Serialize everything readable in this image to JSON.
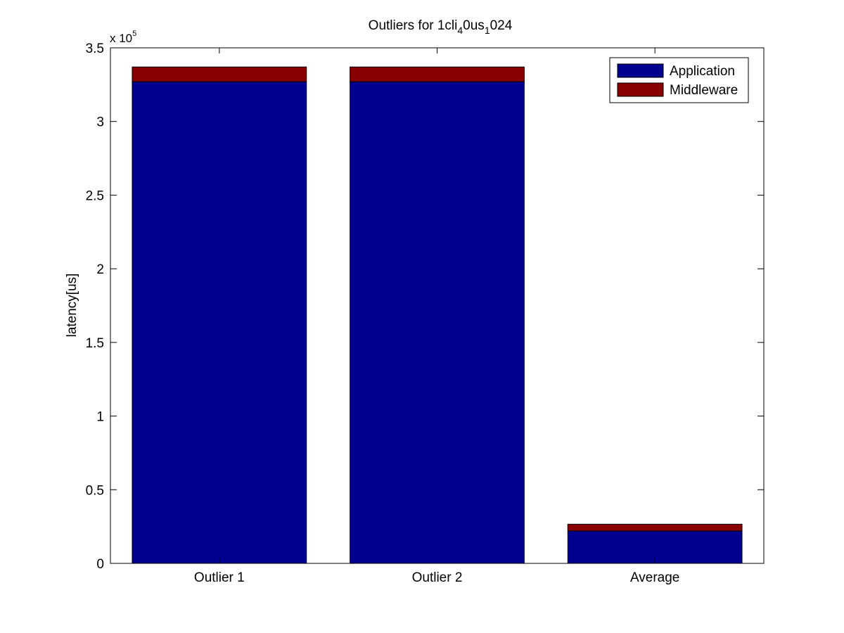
{
  "chart_data": {
    "type": "bar",
    "stacked": true,
    "title_parts": [
      {
        "text": "Outliers for 1cli",
        "sub": false
      },
      {
        "text": "4",
        "sub": true
      },
      {
        "text": "0us",
        "sub": false
      },
      {
        "text": "1",
        "sub": true
      },
      {
        "text": "024",
        "sub": false
      }
    ],
    "ylabel": "latency[us]",
    "xlabel": "",
    "exponent_label": "x 10",
    "exponent_power": "5",
    "ylim": [
      0,
      350000
    ],
    "yticks": [
      0,
      50000,
      100000,
      150000,
      200000,
      250000,
      300000,
      350000
    ],
    "ytick_labels": [
      "0",
      "0.5",
      "1",
      "1.5",
      "2",
      "2.5",
      "3",
      "3.5"
    ],
    "categories": [
      "Outlier 1",
      "Outlier 2",
      "Average"
    ],
    "series": [
      {
        "name": "Application",
        "color": "#000090",
        "values": [
          327000,
          327000,
          22000
        ]
      },
      {
        "name": "Middleware",
        "color": "#880000",
        "values": [
          10000,
          10000,
          4600
        ]
      }
    ],
    "legend_position": "top-right",
    "grid": false
  }
}
